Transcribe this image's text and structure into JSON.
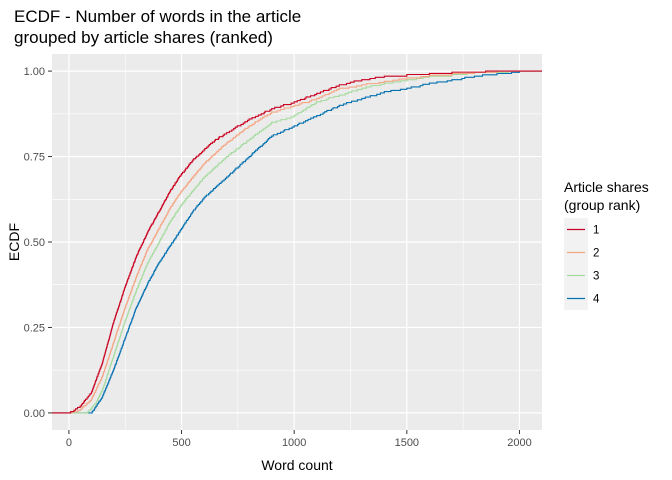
{
  "chart_data": {
    "type": "line",
    "subtype": "ecdf-step",
    "title_line1": "ECDF - Number of words in the article",
    "title_line2": "grouped by article shares (ranked)",
    "xlabel": "Word count",
    "ylabel": "ECDF",
    "xlim": [
      -75,
      2100
    ],
    "ylim": [
      -0.05,
      1.05
    ],
    "x_ticks": [
      0,
      500,
      1000,
      1500,
      2000
    ],
    "x_tick_labels": [
      "0",
      "500",
      "1000",
      "1500",
      "2000"
    ],
    "y_ticks": [
      0,
      0.25,
      0.5,
      0.75,
      1
    ],
    "y_tick_labels": [
      "0.00",
      "0.25",
      "0.50",
      "0.75",
      "1.00"
    ],
    "grid": true,
    "panel_background": "#EBEBEB",
    "legend": {
      "title_line1": "Article shares",
      "title_line2": "(group rank)",
      "position": "right"
    },
    "series": [
      {
        "name": "1",
        "color": "#CA0020",
        "points": [
          [
            -75,
            0
          ],
          [
            0,
            0
          ],
          [
            50,
            0.02
          ],
          [
            100,
            0.06
          ],
          [
            150,
            0.15
          ],
          [
            200,
            0.27
          ],
          [
            250,
            0.37
          ],
          [
            300,
            0.46
          ],
          [
            350,
            0.53
          ],
          [
            400,
            0.59
          ],
          [
            450,
            0.65
          ],
          [
            500,
            0.7
          ],
          [
            550,
            0.74
          ],
          [
            600,
            0.77
          ],
          [
            650,
            0.8
          ],
          [
            700,
            0.82
          ],
          [
            800,
            0.86
          ],
          [
            900,
            0.89
          ],
          [
            1000,
            0.91
          ],
          [
            1100,
            0.935
          ],
          [
            1200,
            0.96
          ],
          [
            1300,
            0.975
          ],
          [
            1400,
            0.985
          ],
          [
            1500,
            0.99
          ],
          [
            1600,
            0.993
          ],
          [
            1700,
            0.997
          ],
          [
            1850,
            1.0
          ],
          [
            2100,
            1.0
          ]
        ]
      },
      {
        "name": "2",
        "color": "#F4A582",
        "points": [
          [
            -75,
            0
          ],
          [
            0,
            0
          ],
          [
            50,
            0.01
          ],
          [
            100,
            0.04
          ],
          [
            150,
            0.11
          ],
          [
            200,
            0.21
          ],
          [
            250,
            0.31
          ],
          [
            300,
            0.4
          ],
          [
            350,
            0.48
          ],
          [
            400,
            0.54
          ],
          [
            450,
            0.6
          ],
          [
            500,
            0.65
          ],
          [
            550,
            0.69
          ],
          [
            600,
            0.73
          ],
          [
            650,
            0.76
          ],
          [
            700,
            0.79
          ],
          [
            800,
            0.84
          ],
          [
            900,
            0.88
          ],
          [
            1000,
            0.9
          ],
          [
            1100,
            0.92
          ],
          [
            1200,
            0.95
          ],
          [
            1300,
            0.96
          ],
          [
            1400,
            0.97
          ],
          [
            1500,
            0.98
          ],
          [
            1600,
            0.988
          ],
          [
            1700,
            0.993
          ],
          [
            1900,
            1.0
          ],
          [
            2100,
            1.0
          ]
        ]
      },
      {
        "name": "3",
        "color": "#A6DBA0",
        "points": [
          [
            -75,
            0
          ],
          [
            0,
            0
          ],
          [
            80,
            0.0
          ],
          [
            120,
            0.03
          ],
          [
            150,
            0.07
          ],
          [
            200,
            0.17
          ],
          [
            250,
            0.27
          ],
          [
            300,
            0.36
          ],
          [
            350,
            0.44
          ],
          [
            400,
            0.5
          ],
          [
            450,
            0.56
          ],
          [
            500,
            0.61
          ],
          [
            550,
            0.65
          ],
          [
            600,
            0.69
          ],
          [
            650,
            0.72
          ],
          [
            700,
            0.75
          ],
          [
            800,
            0.8
          ],
          [
            900,
            0.85
          ],
          [
            1000,
            0.87
          ],
          [
            1100,
            0.91
          ],
          [
            1200,
            0.93
          ],
          [
            1300,
            0.95
          ],
          [
            1400,
            0.965
          ],
          [
            1500,
            0.975
          ],
          [
            1600,
            0.985
          ],
          [
            1700,
            0.99
          ],
          [
            1800,
            0.996
          ],
          [
            1950,
            1.0
          ],
          [
            2100,
            1.0
          ]
        ]
      },
      {
        "name": "4",
        "color": "#0571B0",
        "points": [
          [
            -75,
            0
          ],
          [
            0,
            0
          ],
          [
            100,
            0.0
          ],
          [
            150,
            0.05
          ],
          [
            200,
            0.13
          ],
          [
            250,
            0.22
          ],
          [
            300,
            0.31
          ],
          [
            350,
            0.38
          ],
          [
            400,
            0.44
          ],
          [
            450,
            0.49
          ],
          [
            500,
            0.54
          ],
          [
            550,
            0.59
          ],
          [
            600,
            0.63
          ],
          [
            650,
            0.66
          ],
          [
            700,
            0.69
          ],
          [
            800,
            0.75
          ],
          [
            900,
            0.81
          ],
          [
            1000,
            0.84
          ],
          [
            1100,
            0.87
          ],
          [
            1200,
            0.9
          ],
          [
            1300,
            0.92
          ],
          [
            1400,
            0.94
          ],
          [
            1500,
            0.95
          ],
          [
            1600,
            0.965
          ],
          [
            1700,
            0.975
          ],
          [
            1800,
            0.985
          ],
          [
            1900,
            0.993
          ],
          [
            2000,
            1.0
          ],
          [
            2100,
            1.0
          ]
        ]
      }
    ]
  }
}
